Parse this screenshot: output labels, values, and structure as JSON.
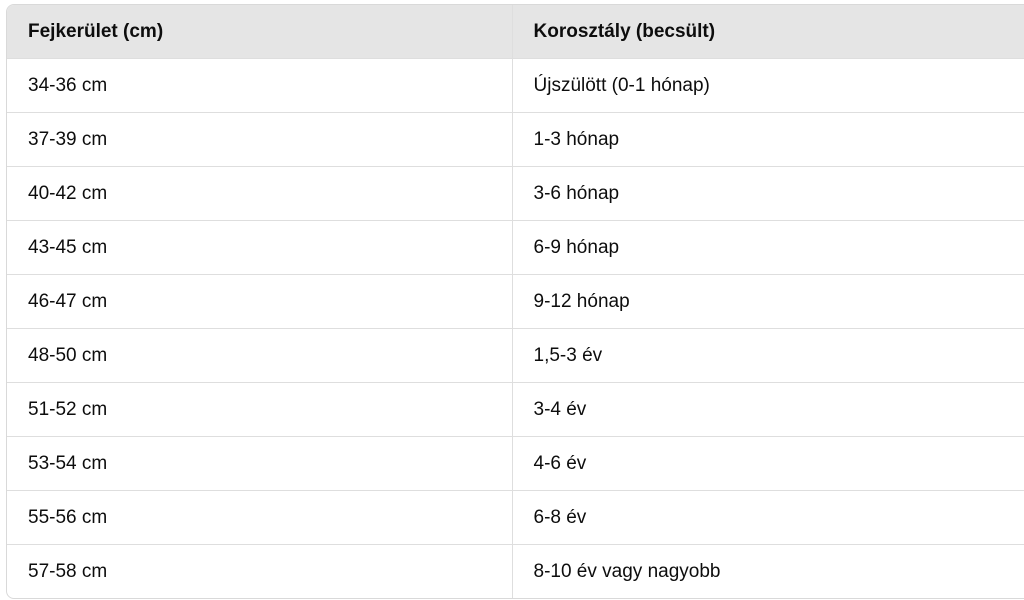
{
  "table": {
    "headers": [
      "Fejkerület (cm)",
      "Korosztály (becsült)"
    ],
    "rows": [
      [
        "34-36 cm",
        "Újszülött (0-1 hónap)"
      ],
      [
        "37-39 cm",
        "1-3 hónap"
      ],
      [
        "40-42 cm",
        "3-6 hónap"
      ],
      [
        "43-45 cm",
        "6-9 hónap"
      ],
      [
        "46-47 cm",
        "9-12 hónap"
      ],
      [
        "48-50 cm",
        "1,5-3 év"
      ],
      [
        "51-52 cm",
        "3-4 év"
      ],
      [
        "53-54 cm",
        "4-6 év"
      ],
      [
        "55-56 cm",
        "6-8 év"
      ],
      [
        "57-58 cm",
        "8-10 év vagy nagyobb"
      ]
    ]
  }
}
